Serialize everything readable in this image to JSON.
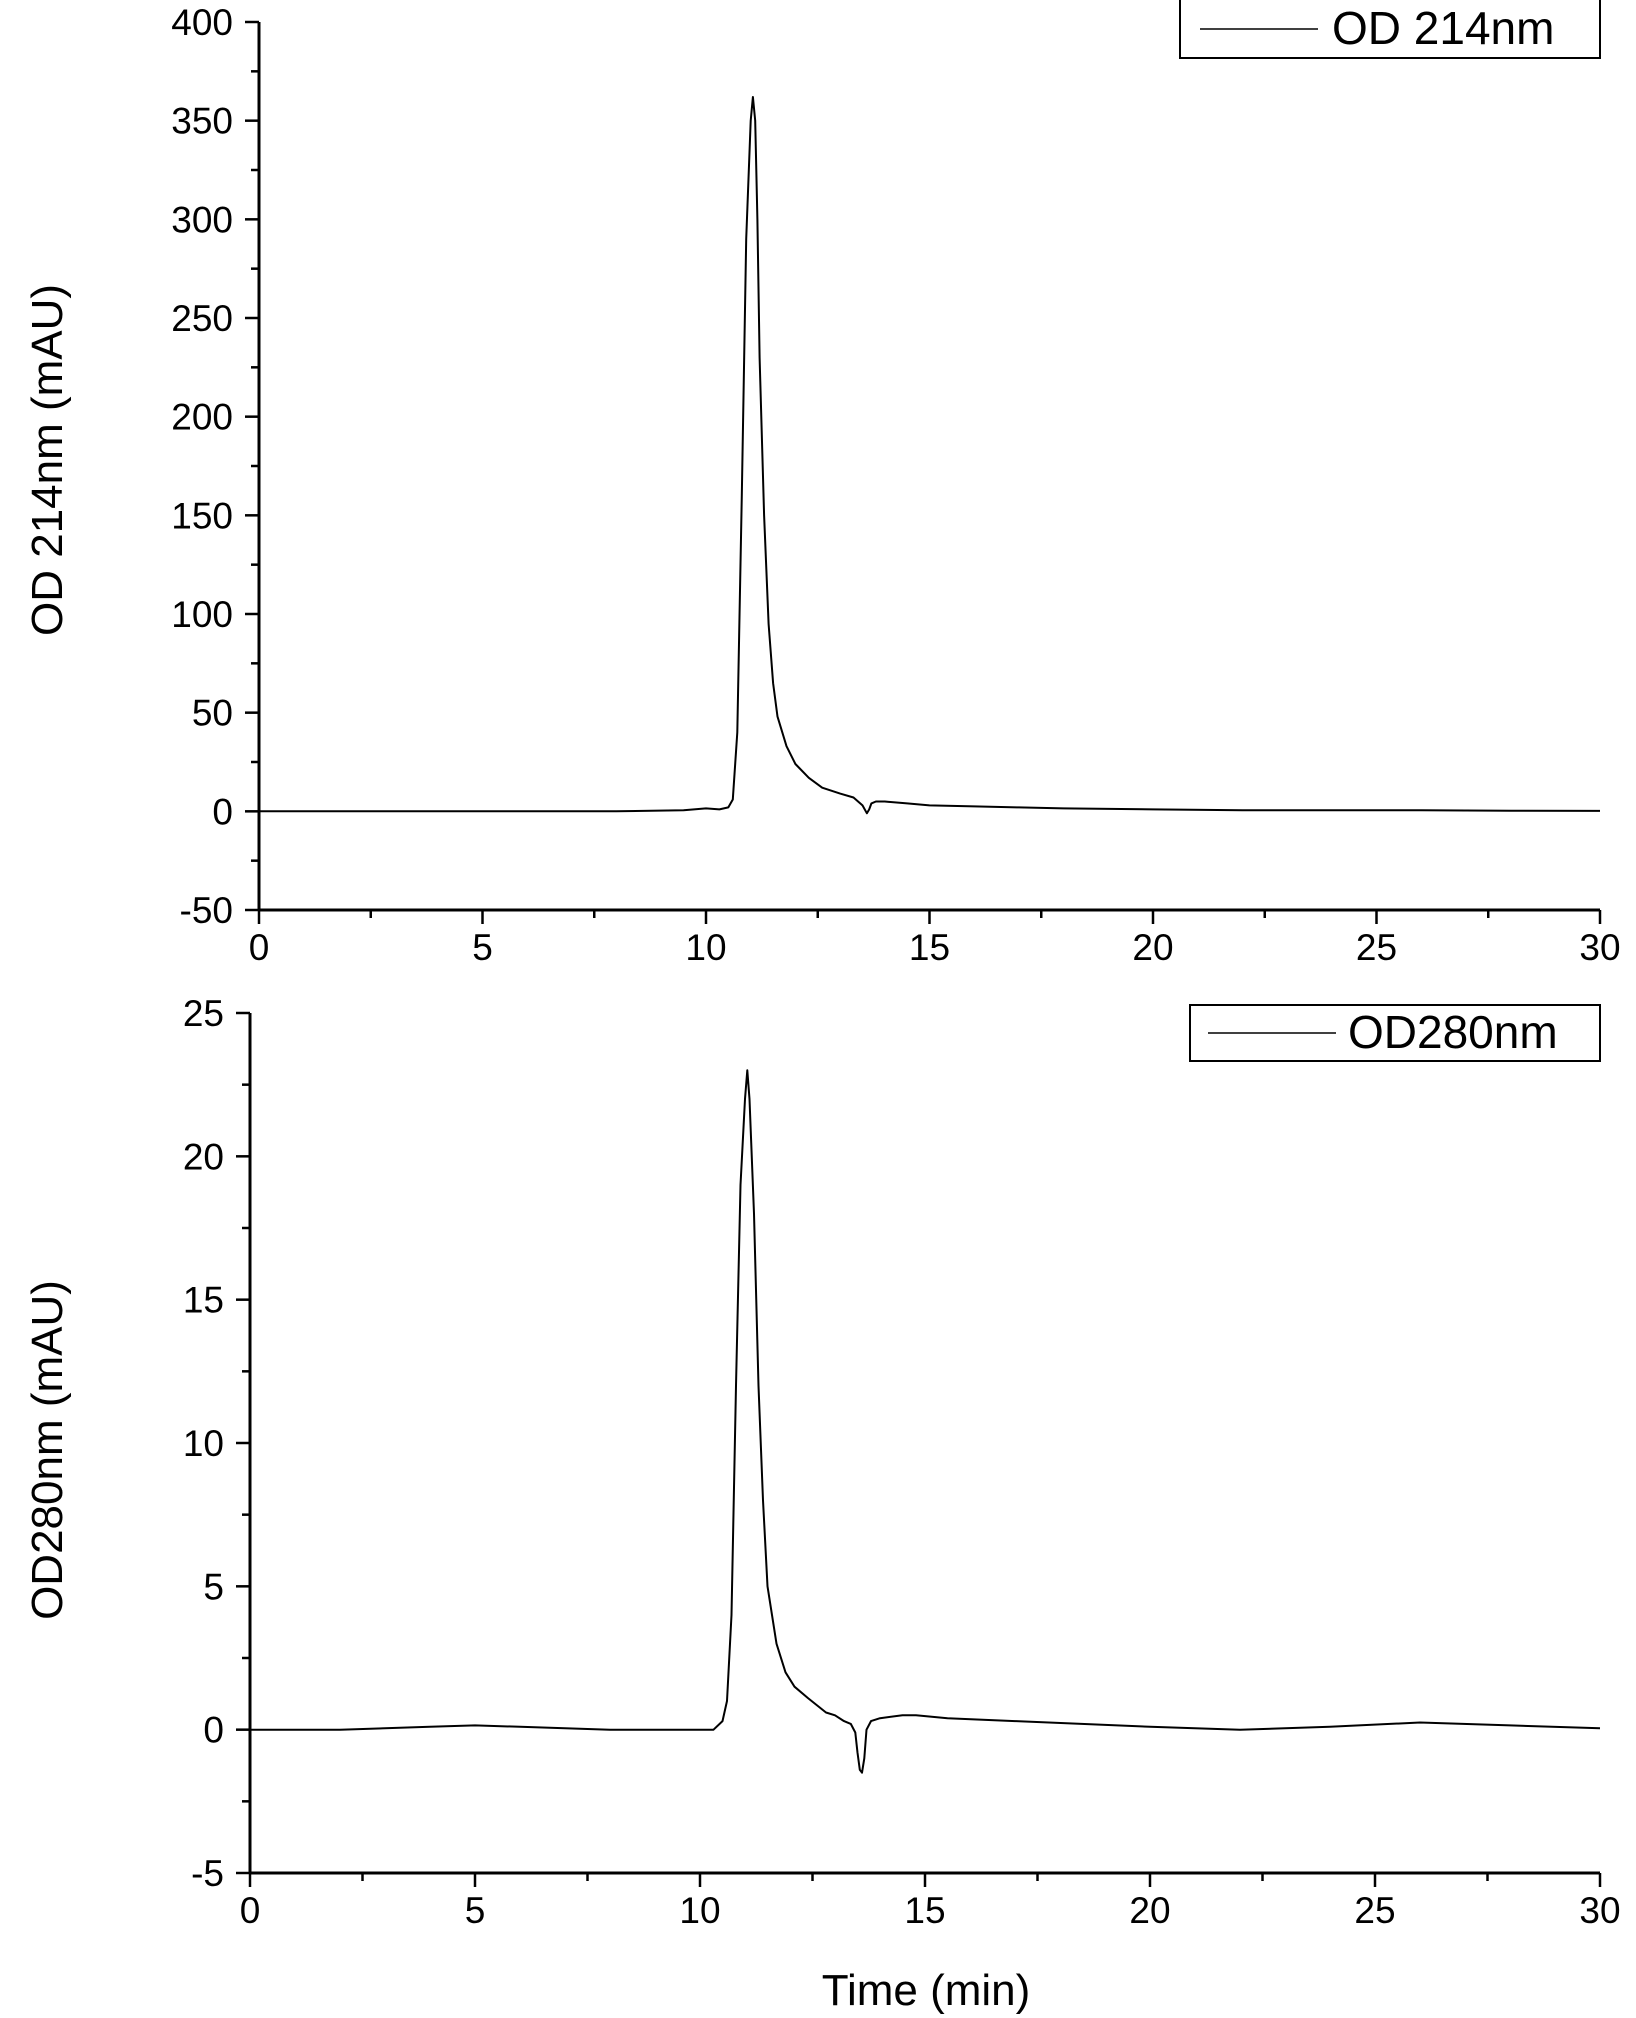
{
  "chart_data": [
    {
      "type": "line",
      "title": "",
      "xlabel": "",
      "ylabel": "OD 214nm (mAU)",
      "xlim": [
        0,
        30
      ],
      "ylim": [
        -50,
        400
      ],
      "xticks": [
        0,
        5,
        10,
        15,
        20,
        25,
        30
      ],
      "yticks": [
        -50,
        0,
        50,
        100,
        150,
        200,
        250,
        300,
        350,
        400
      ],
      "grid": false,
      "legend": {
        "position": "top-right",
        "entries": [
          "OD 214nm"
        ]
      },
      "series": [
        {
          "name": "OD 214nm",
          "color": "#000000",
          "x": [
            0,
            2,
            4,
            6,
            8,
            9.5,
            10,
            10.3,
            10.5,
            10.6,
            10.7,
            10.8,
            10.9,
            11.0,
            11.05,
            11.1,
            11.15,
            11.2,
            11.3,
            11.4,
            11.5,
            11.6,
            11.8,
            12.0,
            12.3,
            12.6,
            13.0,
            13.3,
            13.5,
            13.6,
            13.65,
            13.7,
            13.8,
            14.0,
            14.5,
            15,
            16,
            17,
            18,
            20,
            22,
            24,
            26,
            28,
            30
          ],
          "y": [
            0,
            0,
            0,
            0,
            0,
            0.5,
            1.5,
            1,
            2,
            6,
            40,
            160,
            290,
            350,
            362,
            350,
            300,
            230,
            150,
            95,
            65,
            48,
            33,
            24,
            17,
            12,
            9,
            7,
            3,
            -1,
            1,
            4,
            5,
            5,
            4,
            3,
            2.5,
            2,
            1.5,
            1,
            0.5,
            0.5,
            0.5,
            0.3,
            0.2
          ]
        }
      ]
    },
    {
      "type": "line",
      "title": "",
      "xlabel": "Time (min)",
      "ylabel": "OD280nm (mAU)",
      "xlim": [
        0,
        30
      ],
      "ylim": [
        -5,
        25
      ],
      "xticks": [
        0,
        5,
        10,
        15,
        20,
        25,
        30
      ],
      "yticks": [
        -5,
        0,
        5,
        10,
        15,
        20,
        25
      ],
      "grid": false,
      "legend": {
        "position": "top-right",
        "entries": [
          "OD280nm"
        ]
      },
      "series": [
        {
          "name": "OD280nm",
          "color": "#000000",
          "x": [
            0,
            2,
            4,
            5,
            6,
            8,
            9.5,
            10,
            10.3,
            10.5,
            10.6,
            10.7,
            10.8,
            10.9,
            11.0,
            11.05,
            11.1,
            11.2,
            11.3,
            11.4,
            11.5,
            11.7,
            11.9,
            12.1,
            12.4,
            12.8,
            13.0,
            13.2,
            13.35,
            13.45,
            13.5,
            13.55,
            13.6,
            13.65,
            13.7,
            13.8,
            14.0,
            14.5,
            14.8,
            15.5,
            17,
            20,
            22,
            24,
            26,
            28,
            30
          ],
          "y": [
            0,
            0,
            0.1,
            0.15,
            0.1,
            0,
            0,
            0,
            0,
            0.3,
            1,
            4,
            12,
            19,
            22,
            23,
            22,
            18,
            12,
            8,
            5,
            3,
            2,
            1.5,
            1.1,
            0.6,
            0.5,
            0.3,
            0.2,
            -0.1,
            -0.8,
            -1.4,
            -1.5,
            -1.0,
            0,
            0.3,
            0.4,
            0.5,
            0.5,
            0.4,
            0.3,
            0.1,
            0,
            0.1,
            0.25,
            0.15,
            0.05
          ]
        }
      ]
    }
  ]
}
